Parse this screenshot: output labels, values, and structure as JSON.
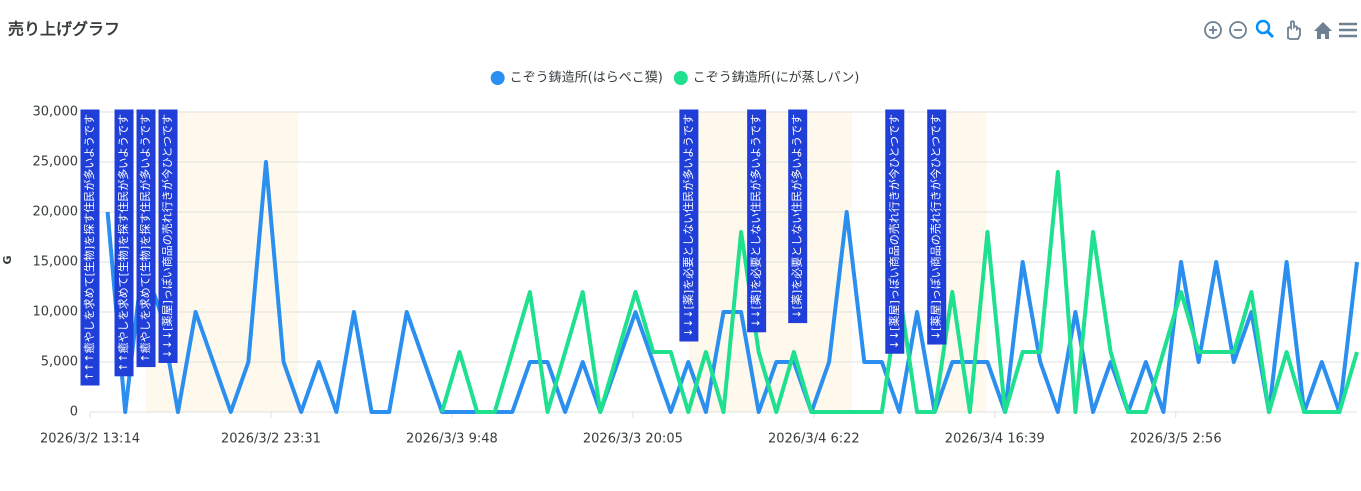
{
  "chart_data": {
    "type": "line",
    "title": "売り上げグラフ",
    "y_label": "G",
    "x": [
      "2026/3/2 14:14",
      "2026/3/2 15:14",
      "2026/3/2 16:14",
      "2026/3/2 17:14",
      "2026/3/2 18:14",
      "2026/3/2 19:14",
      "2026/3/2 20:14",
      "2026/3/2 21:14",
      "2026/3/2 22:14",
      "2026/3/2 23:14",
      "2026/3/3 0:14",
      "2026/3/3 1:14",
      "2026/3/3 2:14",
      "2026/3/3 3:14",
      "2026/3/3 4:14",
      "2026/3/3 5:14",
      "2026/3/3 6:14",
      "2026/3/3 7:14",
      "2026/3/3 8:14",
      "2026/3/3 9:14",
      "2026/3/3 10:14",
      "2026/3/3 11:14",
      "2026/3/3 12:14",
      "2026/3/3 13:14",
      "2026/3/3 14:14",
      "2026/3/3 15:14",
      "2026/3/3 16:14",
      "2026/3/3 17:14",
      "2026/3/3 18:14",
      "2026/3/3 19:14",
      "2026/3/3 20:14",
      "2026/3/3 21:14",
      "2026/3/3 22:14",
      "2026/3/3 23:14",
      "2026/3/4 0:14",
      "2026/3/4 1:14",
      "2026/3/4 2:14",
      "2026/3/4 3:14",
      "2026/3/4 4:14",
      "2026/3/4 5:14",
      "2026/3/4 6:14",
      "2026/3/4 7:14",
      "2026/3/4 8:14",
      "2026/3/4 9:14",
      "2026/3/4 10:14",
      "2026/3/4 11:14",
      "2026/3/4 12:14",
      "2026/3/4 13:14",
      "2026/3/4 14:14",
      "2026/3/4 15:14",
      "2026/3/4 16:14",
      "2026/3/4 17:14",
      "2026/3/4 18:14",
      "2026/3/4 19:14",
      "2026/3/4 20:14",
      "2026/3/4 21:14",
      "2026/3/4 22:14",
      "2026/3/4 23:14",
      "2026/3/5 0:14",
      "2026/3/5 1:14",
      "2026/3/5 2:14",
      "2026/3/5 3:14",
      "2026/3/5 4:14",
      "2026/3/5 5:14",
      "2026/3/5 6:14",
      "2026/3/5 7:14",
      "2026/3/5 8:14",
      "2026/3/5 9:14",
      "2026/3/5 10:14",
      "2026/3/5 11:14",
      "2026/3/5 12:14",
      "2026/3/5 13:14"
    ],
    "series": [
      {
        "name": "こぞう鋳造所(はらぺこ獏)",
        "color": "#2b8ff0",
        "values": [
          20000,
          0,
          15000,
          10000,
          0,
          10000,
          5000,
          0,
          5000,
          25000,
          5000,
          0,
          5000,
          0,
          10000,
          0,
          0,
          10000,
          5000,
          0,
          0,
          0,
          0,
          0,
          5000,
          5000,
          0,
          5000,
          0,
          5000,
          10000,
          5000,
          0,
          5000,
          0,
          10000,
          10000,
          0,
          5000,
          5000,
          0,
          5000,
          20000,
          5000,
          5000,
          0,
          10000,
          0,
          5000,
          5000,
          5000,
          0,
          15000,
          5000,
          0,
          10000,
          0,
          5000,
          0,
          5000,
          0,
          15000,
          5000,
          15000,
          5000,
          10000,
          0,
          15000,
          0,
          5000,
          0,
          15000
        ]
      },
      {
        "name": "こぞう鋳造所(にが蒸しパン)",
        "color": "#1fe08f",
        "values": [
          null,
          null,
          null,
          null,
          null,
          null,
          null,
          null,
          null,
          null,
          null,
          null,
          null,
          null,
          null,
          null,
          null,
          null,
          null,
          0,
          6000,
          0,
          0,
          6000,
          12000,
          0,
          6000,
          12000,
          0,
          6000,
          12000,
          6000,
          6000,
          0,
          6000,
          0,
          18000,
          6000,
          0,
          6000,
          0,
          0,
          0,
          0,
          0,
          12000,
          0,
          0,
          12000,
          0,
          18000,
          0,
          6000,
          6000,
          24000,
          0,
          18000,
          6000,
          0,
          0,
          6000,
          12000,
          6000,
          6000,
          6000,
          12000,
          0,
          6000,
          0,
          0,
          0,
          6000
        ]
      }
    ],
    "xlim": [
      "2026/3/2 13:14",
      "2026/3/5 13:14"
    ],
    "xticks": [
      "2026/3/2 13:14",
      "2026/3/2 23:31",
      "2026/3/3 9:48",
      "2026/3/3 20:05",
      "2026/3/4 6:22",
      "2026/3/4 16:39",
      "2026/3/5 2:56"
    ],
    "ylim": [
      0,
      30000
    ],
    "yticks": [
      0,
      {
        "value": 5000,
        "label": "5,000"
      },
      {
        "value": 10000,
        "label": "10,000"
      },
      {
        "value": 15000,
        "label": "15,000"
      },
      {
        "value": 20000,
        "label": "20,000"
      },
      {
        "value": 25000,
        "label": "25,000"
      },
      {
        "value": 30000,
        "label": "30,000"
      }
    ],
    "grid": true,
    "ranges": [
      [
        "2026/3/2 16:25",
        "2026/3/3 1:03"
      ],
      [
        "2026/3/3 23:16",
        "2026/3/4 8:31"
      ],
      [
        "2026/3/4 13:21",
        "2026/3/4 16:11"
      ]
    ],
    "annotations": [
      {
        "x": "2026/3/2 13:14",
        "text": "↑↑↑癒やしを求めて[生物]を探す住民が多いようです"
      },
      {
        "x": "2026/3/2 15:10",
        "text": "↑↑癒やしを求めて[生物]を探す住民が多いようです"
      },
      {
        "x": "2026/3/2 16:25",
        "text": "↑癒やしを求めて[生物]を探す住民が多いようです"
      },
      {
        "x": "2026/3/2 17:40",
        "text": "↓↓↓[薬屋]っぽい商品の売れ行きが今ひとつです"
      },
      {
        "x": "2026/3/3 23:16",
        "text": "↓↓↓[薬]を必要としない住民が多いようです"
      },
      {
        "x": "2026/3/4 3:07",
        "text": "↓↓[薬]を必要としない住民が多いようです"
      },
      {
        "x": "2026/3/4 5:27",
        "text": "↓[薬]を必要としない住民が多いようです"
      },
      {
        "x": "2026/3/4 10:58",
        "text": "↓↓[薬屋]っぽい商品の売れ行きが今ひとつです"
      },
      {
        "x": "2026/3/4 13:21",
        "text": "↓[薬屋]っぽい商品の売れ行きが今ひとつです"
      }
    ]
  }
}
